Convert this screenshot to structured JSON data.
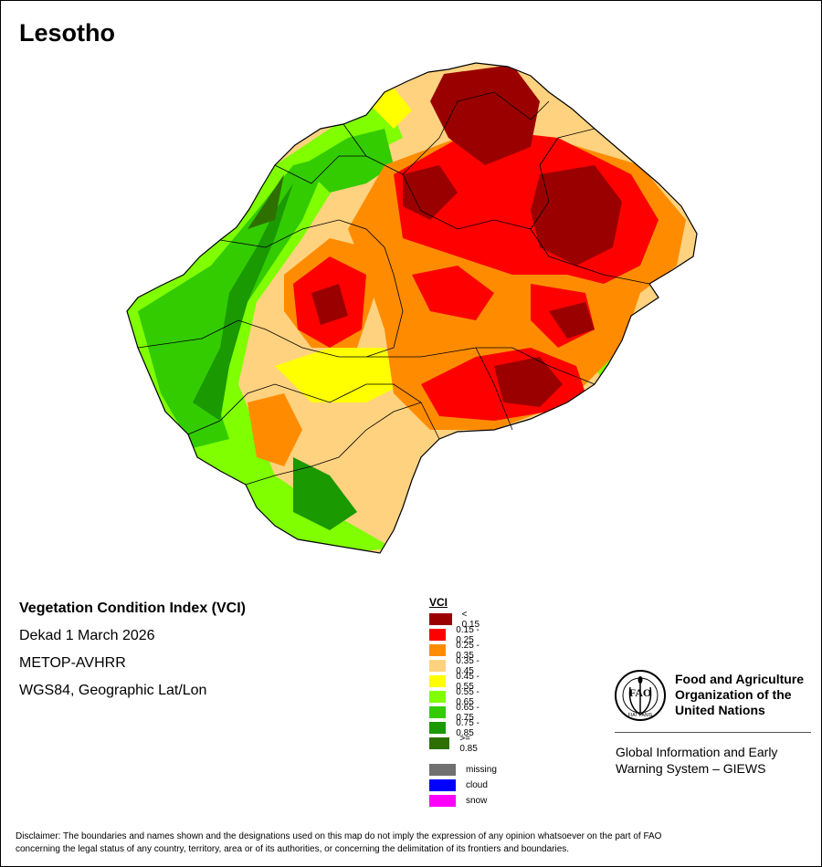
{
  "map_title": "Lesotho",
  "info": {
    "index_name": "Vegetation Condition Index (VCI)",
    "period": "Dekad 1 March 2026",
    "sensor": "METOP-AVHRR",
    "projection": "WGS84, Geographic Lat/Lon"
  },
  "legend": {
    "title": "VCI",
    "classes": [
      {
        "label": "< 0.15",
        "color": "#9b0000"
      },
      {
        "label": "0.15 - 0.25",
        "color": "#ff0000"
      },
      {
        "label": "0.25 - 0.35",
        "color": "#ff8c00"
      },
      {
        "label": "0.35 - 0.45",
        "color": "#ffd27f"
      },
      {
        "label": "0.45 - 0.55",
        "color": "#ffff00"
      },
      {
        "label": "0.55 - 0.65",
        "color": "#7fff00"
      },
      {
        "label": "0.65 - 0.75",
        "color": "#33cc00"
      },
      {
        "label": "0.75 - 0.85",
        "color": "#1a9900"
      },
      {
        "label": ">= 0.85",
        "color": "#2e7000"
      }
    ],
    "other": [
      {
        "label": "missing",
        "color": "#707070"
      },
      {
        "label": "cloud",
        "color": "#0000ff"
      },
      {
        "label": "snow",
        "color": "#ff00ff"
      }
    ]
  },
  "organization": {
    "logo_text": "FAO",
    "logo_motto": "FIAT PANIS",
    "name_line1": "Food and Agriculture",
    "name_line2": "Organization of the",
    "name_line3": "United Nations",
    "program_line1": "Global Information and Early",
    "program_line2": "Warning System – GIEWS"
  },
  "disclaimer_line1": "Disclaimer: The boundaries and names shown and the designations used on this map do not imply the expression of any opinion whatsoever on the part of FAO",
  "disclaimer_line2": "concerning the legal status of any country, territory, area or of its authorities, or concerning the delimitation of its frontiers and boundaries."
}
